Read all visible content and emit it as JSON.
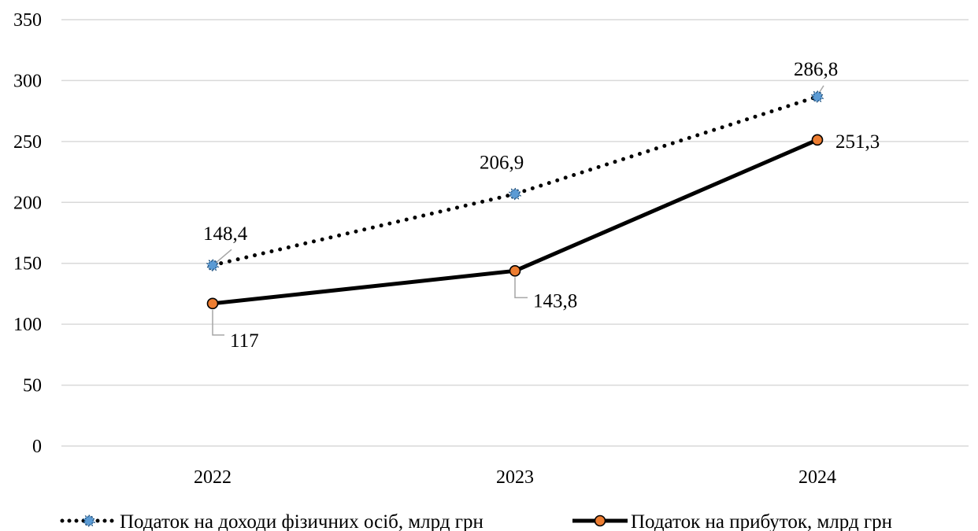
{
  "chart_data": {
    "type": "line",
    "title": "",
    "xlabel": "",
    "ylabel": "",
    "categories": [
      "2022",
      "2023",
      "2024"
    ],
    "ylim": [
      0,
      350
    ],
    "yticks": [
      0,
      50,
      100,
      150,
      200,
      250,
      300,
      350
    ],
    "grid": true,
    "legend_position": "bottom",
    "series": [
      {
        "name": "Податок на доходи фізичних осіб, млрд грн",
        "values": [
          148.4,
          206.9,
          286.8
        ],
        "labels": [
          "148,4",
          "206,9",
          "286,8"
        ],
        "line_style": "dotted",
        "color": "#000000",
        "marker": "star-burst",
        "marker_color": "#5b9bd5"
      },
      {
        "name": "Податок на прибуток, млрд грн",
        "values": [
          117,
          143.8,
          251.3
        ],
        "labels": [
          "117",
          "143,8",
          "251,3"
        ],
        "line_style": "solid",
        "color": "#000000",
        "marker": "circle",
        "marker_color": "#ed7d31"
      }
    ]
  }
}
